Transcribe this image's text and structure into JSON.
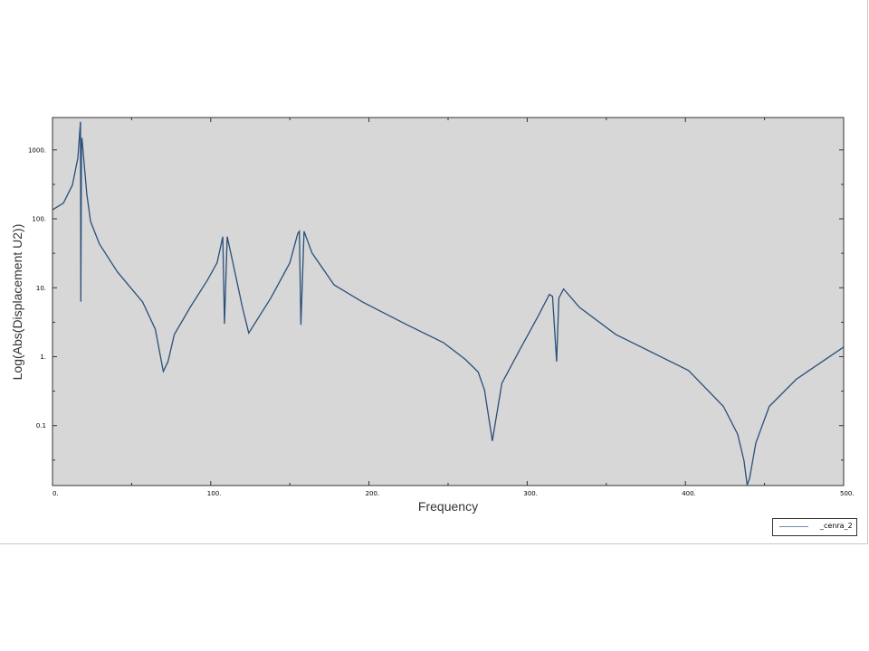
{
  "chart_data": {
    "type": "line",
    "xlabel": "Frequency",
    "ylabel": "Log(Abs(Displacement U2))",
    "xlim": [
      0,
      500
    ],
    "ylim": [
      0.0135,
      2950
    ],
    "yscale": "log",
    "xticks": [
      "0.",
      "100.",
      "200.",
      "300.",
      "400.",
      "500."
    ],
    "xtick_values": [
      0,
      100,
      200,
      300,
      400,
      500
    ],
    "yticks": [
      "0.1",
      "1.",
      "10.",
      "100.",
      "1000."
    ],
    "ytick_values": [
      0.1,
      1,
      10,
      100,
      1000
    ],
    "grid": false,
    "background": "#d7d7d7",
    "legend": {
      "position": "bottom-right",
      "entries": [
        "_cenra_2"
      ]
    },
    "series": [
      {
        "name": "_cenra_2",
        "color": "#2a4f7a",
        "x": [
          0,
          6.9,
          12.6,
          16,
          17.7,
          17.9,
          18.3,
          18.6,
          21.7,
          24,
          29.7,
          41,
          57,
          65,
          70,
          73,
          77,
          87,
          98,
          104,
          107.6,
          108.7,
          110.4,
          114,
          120,
          124,
          138,
          150,
          155,
          156,
          157,
          159,
          164,
          178,
          196,
          224,
          247,
          261,
          269,
          273,
          278,
          284,
          296,
          307,
          314,
          316,
          318.6,
          320,
          323,
          333,
          356,
          402,
          424,
          433,
          437,
          439,
          440.5,
          444.5,
          453,
          470,
          500
        ],
        "y": [
          135,
          170,
          310,
          760,
          2560,
          6.3,
          1200,
          1500,
          230,
          92,
          43,
          17,
          6.2,
          2.5,
          0.61,
          0.85,
          2.1,
          5.2,
          13,
          23,
          55,
          3.0,
          55,
          23,
          5.2,
          2.2,
          7.1,
          23,
          61,
          66,
          2.9,
          66,
          32,
          11,
          6.2,
          2.9,
          1.6,
          0.91,
          0.6,
          0.33,
          0.06,
          0.41,
          1.35,
          3.9,
          8.0,
          7.5,
          0.85,
          7.1,
          9.6,
          5.2,
          2.1,
          0.63,
          0.19,
          0.075,
          0.031,
          0.0138,
          0.017,
          0.056,
          0.19,
          0.47,
          1.38
        ]
      }
    ]
  }
}
